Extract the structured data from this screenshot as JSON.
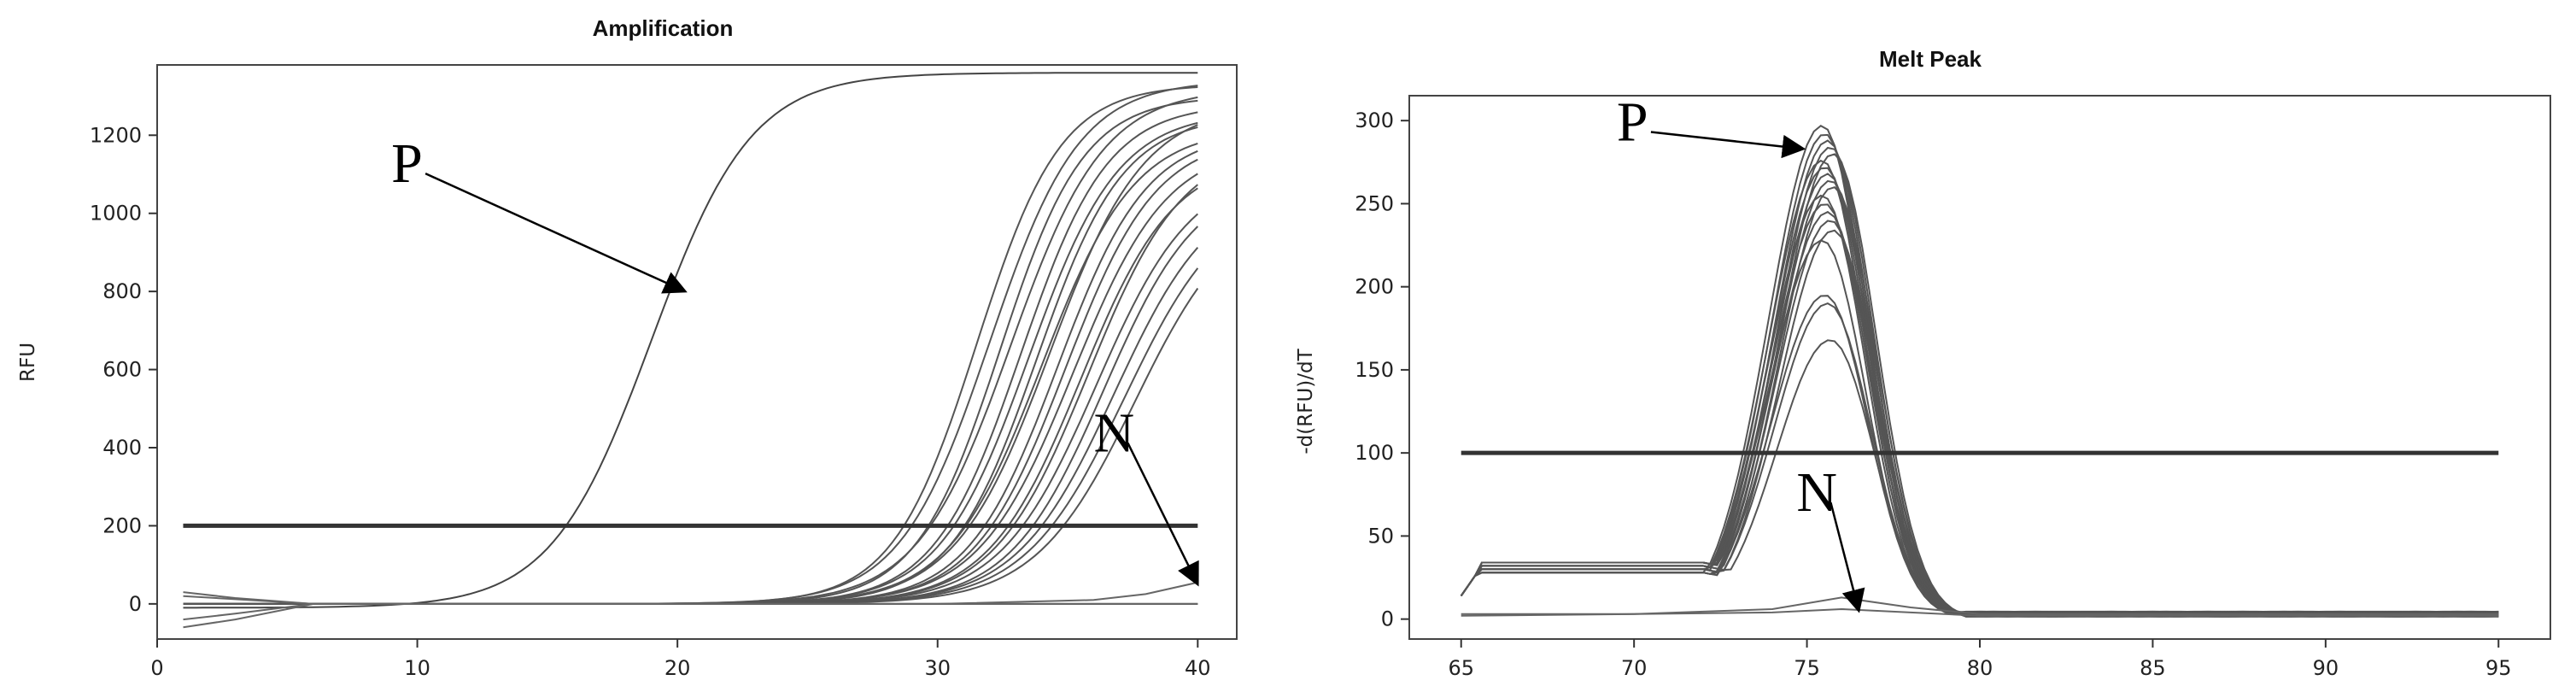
{
  "chart_data": [
    {
      "type": "line",
      "title": "Amplification",
      "xlabel": "",
      "ylabel": "RFU",
      "xlim": [
        0,
        41.5
      ],
      "ylim": [
        -90,
        1380
      ],
      "xticks": [
        0,
        10,
        20,
        30,
        40
      ],
      "yticks": [
        0,
        200,
        400,
        600,
        800,
        1000,
        1200
      ],
      "grid": false,
      "threshold": 200,
      "annotations": [
        {
          "text": "P",
          "label_at": [
            9.0,
            1080
          ],
          "arrow_to": [
            20.3,
            800
          ]
        },
        {
          "text": "N",
          "label_at": [
            36.0,
            390
          ],
          "arrow_to": [
            40.0,
            50
          ]
        }
      ],
      "positive_sigmoids": [
        {
          "base": -10,
          "top": 1360,
          "mid": 19.0,
          "k": 0.52
        },
        {
          "base": 0,
          "top": 1330,
          "mid": 31.5,
          "k": 0.62
        },
        {
          "base": 0,
          "top": 1340,
          "mid": 32.0,
          "k": 0.58
        },
        {
          "base": 0,
          "top": 1300,
          "mid": 32.4,
          "k": 0.62
        },
        {
          "base": 0,
          "top": 1320,
          "mid": 32.8,
          "k": 0.56
        },
        {
          "base": 0,
          "top": 1280,
          "mid": 33.2,
          "k": 0.6
        },
        {
          "base": 0,
          "top": 1260,
          "mid": 33.5,
          "k": 0.58
        },
        {
          "base": 0,
          "top": 1250,
          "mid": 33.8,
          "k": 0.6
        },
        {
          "base": 0,
          "top": 1220,
          "mid": 34.0,
          "k": 0.56
        },
        {
          "base": 0,
          "top": 1280,
          "mid": 34.3,
          "k": 0.55
        },
        {
          "base": 0,
          "top": 1210,
          "mid": 34.6,
          "k": 0.58
        },
        {
          "base": 0,
          "top": 1200,
          "mid": 34.9,
          "k": 0.57
        },
        {
          "base": 0,
          "top": 1180,
          "mid": 35.2,
          "k": 0.55
        },
        {
          "base": 0,
          "top": 1150,
          "mid": 35.5,
          "k": 0.56
        },
        {
          "base": 0,
          "top": 1180,
          "mid": 35.8,
          "k": 0.55
        },
        {
          "base": 0,
          "top": 1120,
          "mid": 36.1,
          "k": 0.54
        },
        {
          "base": 0,
          "top": 1100,
          "mid": 36.4,
          "k": 0.55
        },
        {
          "base": 0,
          "top": 1080,
          "mid": 36.8,
          "k": 0.53
        },
        {
          "base": 0,
          "top": 1060,
          "mid": 37.2,
          "k": 0.52
        },
        {
          "base": 0,
          "top": 1040,
          "mid": 37.6,
          "k": 0.52
        }
      ],
      "negative_curves": [
        {
          "name": "",
          "x": [
            1,
            3,
            6,
            10,
            20,
            30,
            36,
            38,
            40
          ],
          "y": [
            -60,
            -40,
            0,
            0,
            0,
            0,
            10,
            25,
            55
          ]
        },
        {
          "name": "",
          "x": [
            1,
            3,
            6,
            10,
            20,
            30,
            35,
            40
          ],
          "y": [
            20,
            12,
            0,
            0,
            0,
            0,
            0,
            0
          ]
        },
        {
          "name": "",
          "x": [
            1,
            3,
            6,
            10,
            20,
            30,
            40
          ],
          "y": [
            30,
            15,
            0,
            0,
            0,
            0,
            0
          ]
        },
        {
          "name": "",
          "x": [
            1,
            3,
            6,
            10,
            20,
            30,
            40
          ],
          "y": [
            -40,
            -25,
            0,
            0,
            0,
            0,
            0
          ]
        }
      ]
    },
    {
      "type": "line",
      "title": "Melt Peak",
      "xlabel": "",
      "ylabel": "-d(RFU)/dT",
      "xlim": [
        63.5,
        96.5
      ],
      "ylim": [
        -12,
        315
      ],
      "xticks": [
        65,
        70,
        75,
        80,
        85,
        90,
        95
      ],
      "yticks": [
        0,
        50,
        100,
        150,
        200,
        250,
        300
      ],
      "grid": false,
      "threshold": 100,
      "annotations": [
        {
          "text": "P",
          "label_at": [
            69.5,
            288
          ],
          "arrow_to": [
            74.9,
            283
          ]
        },
        {
          "text": "N",
          "label_at": [
            74.7,
            65
          ],
          "arrow_to": [
            76.5,
            5
          ]
        }
      ],
      "peak_heights": [
        297,
        292,
        288,
        284,
        280,
        276,
        272,
        268,
        264,
        260,
        255,
        250,
        245,
        240,
        234,
        228,
        195,
        190,
        168
      ],
      "peak_center": 75.6,
      "negative_curves": [
        {
          "name": "",
          "x": [
            65,
            70,
            74,
            76,
            78,
            80,
            95
          ],
          "y": [
            3,
            3,
            6,
            13,
            7,
            3,
            3
          ]
        },
        {
          "name": "",
          "x": [
            65,
            70,
            74,
            76,
            78,
            80,
            95
          ],
          "y": [
            2,
            3,
            4,
            6,
            4,
            2,
            2
          ]
        }
      ]
    }
  ]
}
